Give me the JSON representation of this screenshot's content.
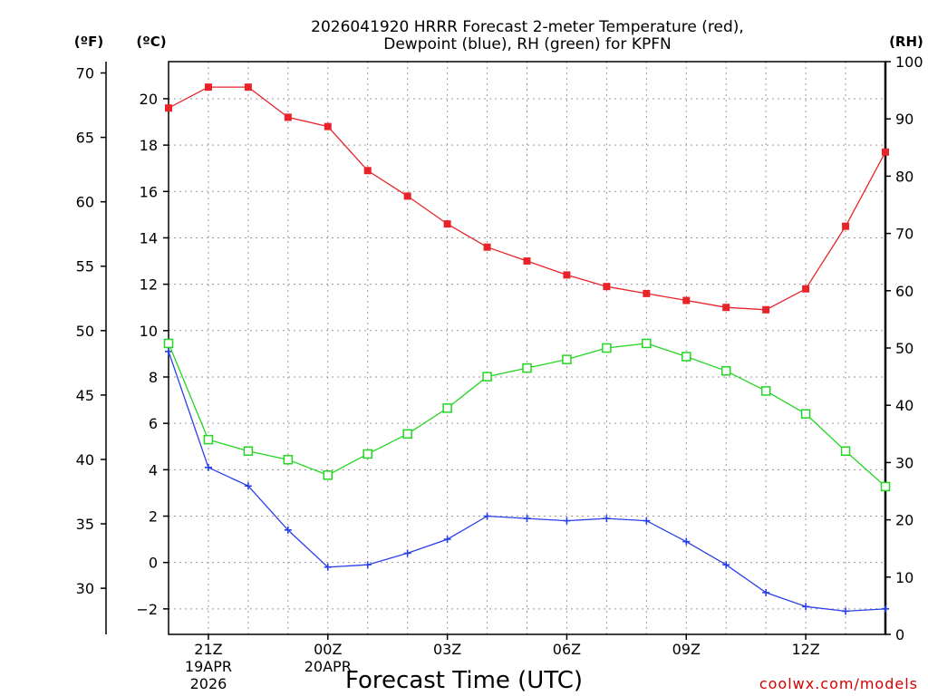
{
  "chart_data": {
    "type": "line",
    "title": [
      "2026041920 HRRR Forecast 2-meter Temperature (red),",
      "Dewpoint (blue), RH (green) for KPFN"
    ],
    "xlabel": "Forecast Time (UTC)",
    "credit": "coolwx.com/models",
    "units": {
      "fahrenheit": "(ºF)",
      "celsius": "(ºC)",
      "rh": "(RH)"
    },
    "x_hours": [
      20,
      21,
      22,
      23,
      24,
      25,
      26,
      27,
      28,
      29,
      30,
      31,
      32,
      33,
      34,
      35,
      36,
      37,
      38
    ],
    "x_range": [
      20,
      38
    ],
    "x_ticks": [
      {
        "hour": 21,
        "lines": [
          "21Z",
          "19APR",
          "2026"
        ]
      },
      {
        "hour": 24,
        "lines": [
          "00Z",
          "20APR"
        ]
      },
      {
        "hour": 27,
        "lines": [
          "03Z"
        ]
      },
      {
        "hour": 30,
        "lines": [
          "06Z"
        ]
      },
      {
        "hour": 33,
        "lines": [
          "09Z"
        ]
      },
      {
        "hour": 36,
        "lines": [
          "12Z"
        ]
      }
    ],
    "y_celsius": {
      "range": [
        -3.1,
        21.6
      ],
      "ticks": [
        -2,
        0,
        2,
        4,
        6,
        8,
        10,
        12,
        14,
        16,
        18,
        20
      ],
      "labels": [
        "−2",
        "0",
        "2",
        "4",
        "6",
        "8",
        "10",
        "12",
        "14",
        "16",
        "18",
        "20"
      ]
    },
    "y_fahrenheit": {
      "ticks": [
        30,
        35,
        40,
        45,
        50,
        55,
        60,
        65,
        70
      ],
      "labels": [
        "30",
        "35",
        "40",
        "45",
        "50",
        "55",
        "60",
        "65",
        "70"
      ]
    },
    "y_rh": {
      "range": [
        0,
        100
      ],
      "ticks": [
        0,
        10,
        20,
        30,
        40,
        50,
        60,
        70,
        80,
        90,
        100
      ],
      "labels": [
        "0",
        "10",
        "20",
        "30",
        "40",
        "50",
        "60",
        "70",
        "80",
        "90",
        "100"
      ]
    },
    "series": [
      {
        "name": "2-meter Temperature",
        "color": "#e8242a",
        "axis": "celsius",
        "marker": "filled-square",
        "values": [
          19.6,
          20.5,
          20.5,
          19.2,
          18.8,
          16.9,
          15.8,
          14.6,
          13.6,
          13.0,
          12.4,
          11.9,
          11.6,
          11.3,
          11.0,
          10.9,
          11.8,
          14.5,
          17.7
        ]
      },
      {
        "name": "Dewpoint",
        "color": "#2a40e8",
        "axis": "celsius",
        "marker": "plus",
        "values": [
          9.1,
          4.1,
          3.3,
          1.4,
          -0.2,
          -0.1,
          0.4,
          1.0,
          2.0,
          1.9,
          1.8,
          1.9,
          1.8,
          0.9,
          -0.1,
          -1.3,
          -1.9,
          -2.1,
          -2.0
        ]
      },
      {
        "name": "RH",
        "color": "#22d622",
        "axis": "rh",
        "marker": "open-square",
        "values": [
          50.8,
          34.0,
          32.0,
          30.5,
          27.8,
          31.5,
          35.0,
          39.5,
          45.0,
          46.5,
          48.0,
          50.0,
          50.8,
          48.5,
          46.0,
          42.5,
          38.5,
          32.0,
          25.8
        ]
      }
    ]
  }
}
